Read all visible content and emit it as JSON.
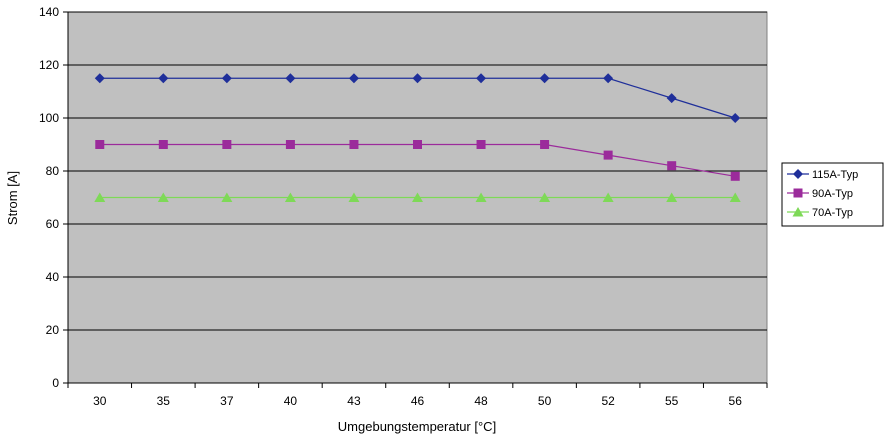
{
  "chart_data": {
    "type": "line",
    "title": "",
    "xlabel": "Umgebungstemperatur [°C]",
    "ylabel": "Strom [A]",
    "categories": [
      "30",
      "35",
      "37",
      "40",
      "43",
      "46",
      "48",
      "50",
      "52",
      "55",
      "56"
    ],
    "ylim": [
      0,
      140
    ],
    "yticks": [
      0,
      20,
      40,
      60,
      80,
      100,
      120,
      140
    ],
    "grid": true,
    "legend_position": "right",
    "plot_background": "#c0c0c0",
    "series": [
      {
        "name": "115A-Typ",
        "color": "#1f2f9a",
        "marker": "diamond",
        "values": [
          115,
          115,
          115,
          115,
          115,
          115,
          115,
          115,
          115,
          107.5,
          100
        ]
      },
      {
        "name": "90A-Typ",
        "color": "#9b2b9b",
        "marker": "square",
        "values": [
          90,
          90,
          90,
          90,
          90,
          90,
          90,
          90,
          86,
          82,
          78
        ]
      },
      {
        "name": "70A-Typ",
        "color": "#7ed957",
        "marker": "triangle",
        "values": [
          70,
          70,
          70,
          70,
          70,
          70,
          70,
          70,
          70,
          70,
          70
        ]
      }
    ]
  }
}
